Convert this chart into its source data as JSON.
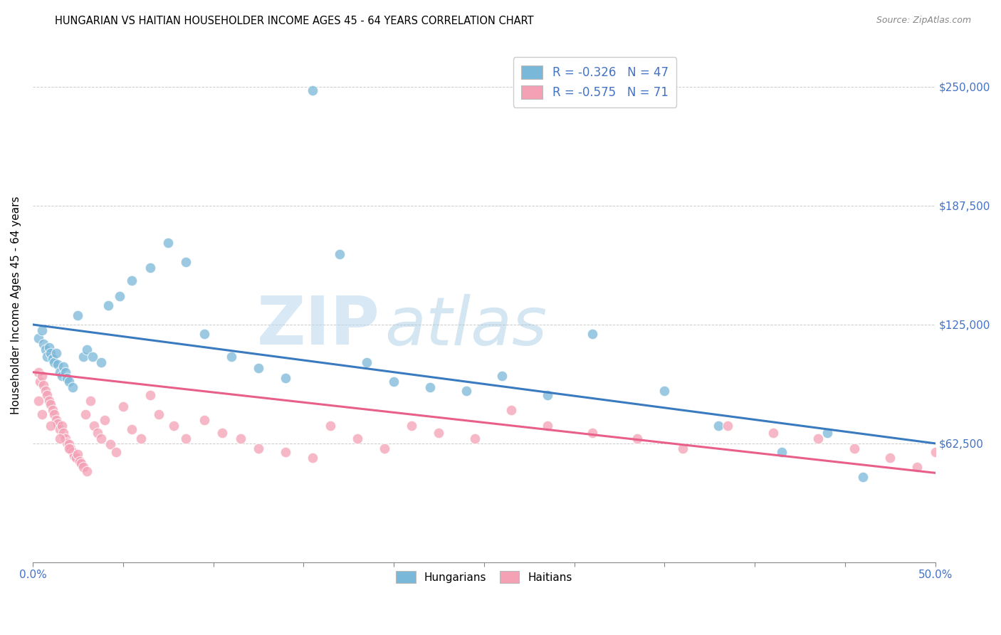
{
  "title": "HUNGARIAN VS HAITIAN HOUSEHOLDER INCOME AGES 45 - 64 YEARS CORRELATION CHART",
  "source": "Source: ZipAtlas.com",
  "ylabel": "Householder Income Ages 45 - 64 years",
  "xlim": [
    0.0,
    0.5
  ],
  "ylim": [
    0,
    270000
  ],
  "ytick_positions": [
    0,
    62500,
    125000,
    187500,
    250000
  ],
  "ytick_labels": [
    "",
    "$62,500",
    "$125,000",
    "$187,500",
    "$250,000"
  ],
  "xtick_positions": [
    0.0,
    0.05,
    0.1,
    0.15,
    0.2,
    0.25,
    0.3,
    0.35,
    0.4,
    0.45,
    0.5
  ],
  "xtick_labels": [
    "0.0%",
    "",
    "",
    "",
    "",
    "",
    "",
    "",
    "",
    "",
    "50.0%"
  ],
  "hungarian_color": "#7ab8d9",
  "haitian_color": "#f4a0b5",
  "hungarian_line_color": "#3a7abf",
  "haitian_line_color": "#e8608a",
  "background_color": "#ffffff",
  "grid_color": "#cccccc",
  "watermark_zip_color": "#c8dff0",
  "watermark_atlas_color": "#c8dff0",
  "hung_line_x0": 0.0,
  "hung_line_y0": 125000,
  "hung_line_x1": 0.5,
  "hung_line_y1": 62500,
  "hait_line_x0": 0.0,
  "hait_line_y0": 100000,
  "hait_line_x1": 0.5,
  "hait_line_y1": 47000,
  "hung_x": [
    0.003,
    0.005,
    0.006,
    0.007,
    0.008,
    0.009,
    0.01,
    0.011,
    0.012,
    0.013,
    0.014,
    0.015,
    0.016,
    0.017,
    0.018,
    0.019,
    0.02,
    0.022,
    0.025,
    0.028,
    0.03,
    0.033,
    0.038,
    0.042,
    0.048,
    0.055,
    0.065,
    0.075,
    0.085,
    0.095,
    0.11,
    0.125,
    0.14,
    0.155,
    0.17,
    0.185,
    0.2,
    0.22,
    0.24,
    0.26,
    0.285,
    0.31,
    0.35,
    0.38,
    0.415,
    0.44,
    0.46
  ],
  "hung_y": [
    118000,
    122000,
    115000,
    112000,
    108000,
    113000,
    110000,
    107000,
    105000,
    110000,
    104000,
    100000,
    98000,
    103000,
    100000,
    97000,
    95000,
    92000,
    130000,
    108000,
    112000,
    108000,
    105000,
    135000,
    140000,
    148000,
    155000,
    168000,
    158000,
    120000,
    108000,
    102000,
    97000,
    248000,
    162000,
    105000,
    95000,
    92000,
    90000,
    98000,
    88000,
    120000,
    90000,
    72000,
    58000,
    68000,
    45000
  ],
  "hait_x": [
    0.003,
    0.004,
    0.005,
    0.006,
    0.007,
    0.008,
    0.009,
    0.01,
    0.011,
    0.012,
    0.013,
    0.014,
    0.015,
    0.016,
    0.017,
    0.018,
    0.019,
    0.02,
    0.021,
    0.022,
    0.023,
    0.024,
    0.025,
    0.026,
    0.027,
    0.028,
    0.029,
    0.03,
    0.032,
    0.034,
    0.036,
    0.038,
    0.04,
    0.043,
    0.046,
    0.05,
    0.055,
    0.06,
    0.065,
    0.07,
    0.078,
    0.085,
    0.095,
    0.105,
    0.115,
    0.125,
    0.14,
    0.155,
    0.165,
    0.18,
    0.195,
    0.21,
    0.225,
    0.245,
    0.265,
    0.285,
    0.31,
    0.335,
    0.36,
    0.385,
    0.41,
    0.435,
    0.455,
    0.475,
    0.49,
    0.5,
    0.003,
    0.005,
    0.01,
    0.015,
    0.02
  ],
  "hait_y": [
    100000,
    95000,
    98000,
    93000,
    90000,
    88000,
    85000,
    83000,
    80000,
    78000,
    75000,
    73000,
    70000,
    72000,
    68000,
    65000,
    63000,
    62000,
    60000,
    58000,
    56000,
    55000,
    57000,
    53000,
    52000,
    50000,
    78000,
    48000,
    85000,
    72000,
    68000,
    65000,
    75000,
    62000,
    58000,
    82000,
    70000,
    65000,
    88000,
    78000,
    72000,
    65000,
    75000,
    68000,
    65000,
    60000,
    58000,
    55000,
    72000,
    65000,
    60000,
    72000,
    68000,
    65000,
    80000,
    72000,
    68000,
    65000,
    60000,
    72000,
    68000,
    65000,
    60000,
    55000,
    50000,
    58000,
    85000,
    78000,
    72000,
    65000,
    60000
  ]
}
